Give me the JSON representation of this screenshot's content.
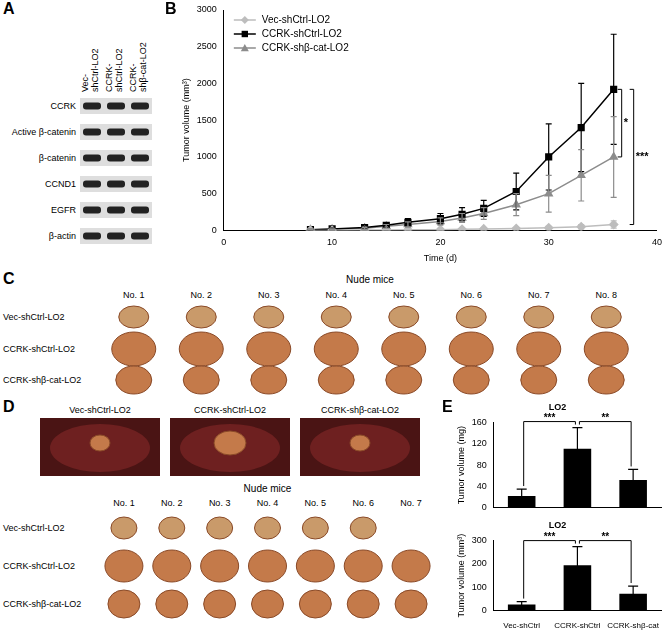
{
  "figure": {
    "A": {
      "panel": "A",
      "lanes": [
        [
          "Vec-",
          "shCtrl-LO2"
        ],
        [
          "CCRK-",
          "shCtrl-LO2"
        ],
        [
          "CCRK-",
          "shβ-cat-LO2"
        ]
      ],
      "rows": [
        "CCRK",
        "Active β-catenin",
        "β-catenin",
        "CCND1",
        "EGFR",
        "β-actin"
      ]
    },
    "C": {
      "panel": "C",
      "header": "Nude mice",
      "columns": [
        "No. 1",
        "No. 2",
        "No. 3",
        "No. 4",
        "No. 5",
        "No. 6",
        "No. 7",
        "No. 8"
      ],
      "rows": [
        {
          "label": "Vec-shCtrl-LO2",
          "tumors": 8
        },
        {
          "label": "CCRK-shCtrl-LO2",
          "tumors": 8
        },
        {
          "label": "CCRK-shβ-cat-LO2",
          "tumors": 8
        }
      ]
    },
    "D": {
      "panel": "D",
      "photos": [
        "Vec-shCtrl-LO2",
        "CCRK-shCtrl-LO2",
        "CCRK-shβ-cat-LO2"
      ],
      "header": "Nude mice",
      "columns": [
        "No. 1",
        "No. 2",
        "No. 3",
        "No. 4",
        "No. 5",
        "No. 6",
        "No. 7"
      ],
      "rows": [
        {
          "label": "Vec-shCtrl-LO2",
          "tumors": 6
        },
        {
          "label": "CCRK-shCtrl-LO2",
          "tumors": 7
        },
        {
          "label": "CCRK-shβ-cat-LO2",
          "tumors": 7
        }
      ]
    }
  },
  "chart_data": [
    {
      "panel": "B",
      "type": "line",
      "x_label": "Time (d)",
      "y_label": "Tumor volume (mm³)",
      "x": [
        8,
        10,
        13,
        15,
        17,
        20,
        22,
        24,
        27,
        30,
        33,
        36
      ],
      "series": [
        {
          "name": "Vec-shCtrl-LO2",
          "color": "#bdbdbd",
          "marker": "diamond",
          "values": [
            0,
            0,
            5,
            5,
            10,
            10,
            15,
            20,
            25,
            35,
            50,
            80
          ],
          "errors": [
            0,
            0,
            0,
            0,
            5,
            5,
            5,
            10,
            10,
            20,
            30,
            50
          ]
        },
        {
          "name": "CCRK-shCtrl-LO2",
          "color": "#000000",
          "marker": "square",
          "values": [
            10,
            20,
            40,
            70,
            110,
            160,
            220,
            300,
            530,
            1000,
            1400,
            1920
          ],
          "errors": [
            5,
            10,
            20,
            30,
            50,
            70,
            90,
            110,
            250,
            450,
            600,
            750
          ]
        },
        {
          "name": "CCRK-shβ-cat-LO2",
          "color": "#8c8c8c",
          "marker": "triangle",
          "values": [
            10,
            15,
            30,
            55,
            80,
            120,
            170,
            230,
            350,
            500,
            750,
            1000
          ],
          "errors": [
            5,
            5,
            15,
            25,
            35,
            50,
            60,
            80,
            150,
            250,
            350,
            550
          ]
        }
      ],
      "xlim": [
        0,
        40
      ],
      "xticks": [
        0,
        10,
        20,
        30,
        40
      ],
      "ylim": [
        0,
        3000
      ],
      "yticks": [
        0,
        500,
        1000,
        1500,
        2000,
        2500,
        3000
      ],
      "grid": false,
      "legend": "upper left",
      "significance": [
        {
          "between": [
            "CCRK-shCtrl-LO2",
            "CCRK-shβ-cat-LO2"
          ],
          "label": "*"
        },
        {
          "between": [
            "Vec-shCtrl-LO2",
            "CCRK-shCtrl-LO2"
          ],
          "label": "***"
        }
      ]
    },
    {
      "panel": "E",
      "type": "bar",
      "title": "LO2",
      "y_label": "Tumor volume (mg)",
      "categories": [
        "Vec-shCtrl",
        "CCRK-shCtrl",
        "CCRK-shβ-cat"
      ],
      "values": [
        22,
        111,
        52
      ],
      "errors": [
        13,
        40,
        20
      ],
      "color": "#000000",
      "ylim": [
        0,
        160
      ],
      "yticks": [
        0,
        40,
        80,
        120,
        160
      ],
      "grid": false,
      "tick_labels": "y",
      "significance": [
        {
          "between": [
            "Vec-shCtrl",
            "CCRK-shCtrl"
          ],
          "label": "***"
        },
        {
          "between": [
            "CCRK-shCtrl",
            "CCRK-shβ-cat"
          ],
          "label": "**"
        }
      ]
    },
    {
      "type": "bar",
      "title": "LO2",
      "y_label": "Tumor volume (mm³)",
      "categories": [
        "Vec-shCtrl",
        "CCRK-shCtrl",
        "CCRK-shβ-cat"
      ],
      "values": [
        25,
        195,
        72
      ],
      "errors": [
        13,
        80,
        33
      ],
      "color": "#000000",
      "ylim": [
        0,
        300
      ],
      "yticks": [
        0,
        100,
        200,
        300
      ],
      "grid": false,
      "significance": [
        {
          "between": [
            "Vec-shCtrl",
            "CCRK-shCtrl"
          ],
          "label": "***"
        },
        {
          "between": [
            "CCRK-shCtrl",
            "CCRK-shβ-cat"
          ],
          "label": "**"
        }
      ]
    }
  ]
}
